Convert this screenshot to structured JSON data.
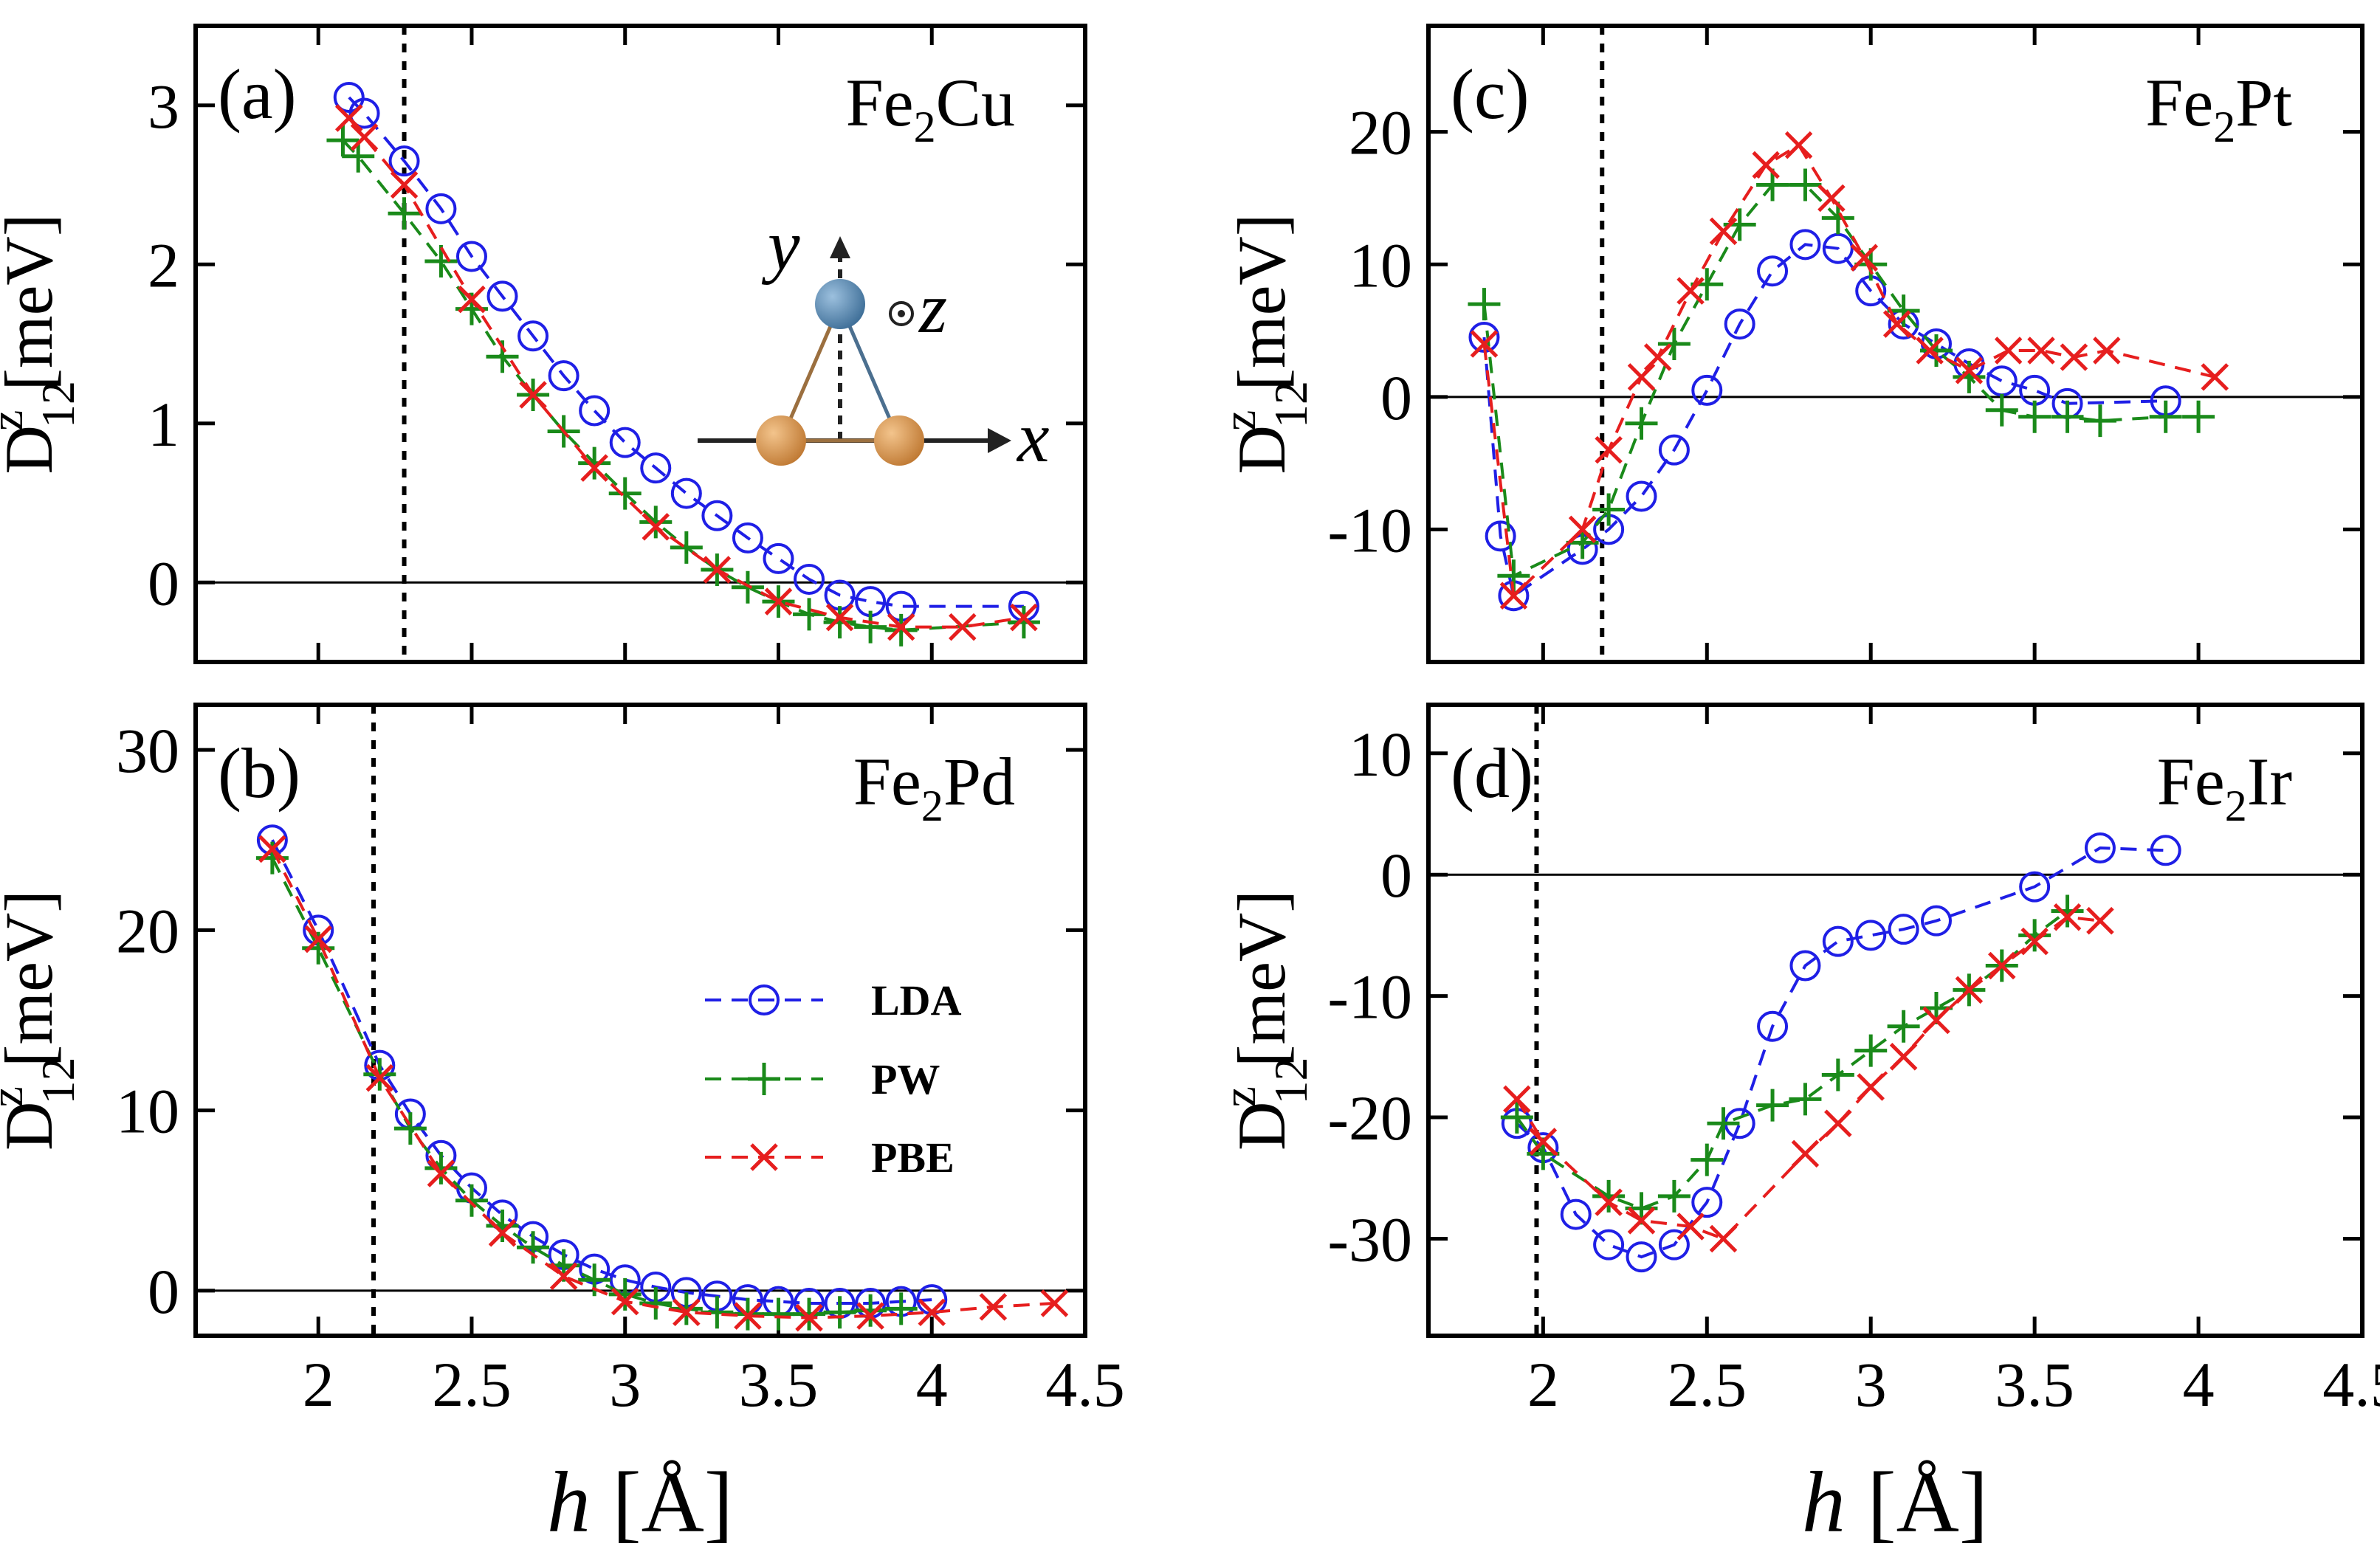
{
  "xlabel": {
    "italic": "h",
    "rest": " [Å]"
  },
  "colors": {
    "LDA": "#1f1fe6",
    "PW": "#1a8a1a",
    "PBE": "#e61e1e"
  },
  "legend": [
    {
      "name": "LDA",
      "marker": "circle"
    },
    {
      "name": "PW",
      "marker": "plus"
    },
    {
      "name": "PBE",
      "marker": "cross"
    }
  ],
  "inset": {
    "x": "x",
    "y": "y",
    "z": "z"
  },
  "chart_data": [
    {
      "type": "line",
      "panel": "(a)",
      "title": "Fe",
      "subscript": "2",
      "title_tail": "Cu",
      "ylabel": {
        "main": "D",
        "sup": "z",
        "sub": "12",
        "unit": "[meV]"
      },
      "xlim": [
        1.6,
        4.5
      ],
      "ylim": [
        -0.5,
        3.5
      ],
      "xticks": [
        "2",
        "2.5",
        "3",
        "3.5",
        "4",
        "4.5"
      ],
      "xtick_values": [
        2,
        2.5,
        3,
        3.5,
        4,
        4.5
      ],
      "ytick_values": [
        0,
        1,
        2,
        3
      ],
      "yticks": [
        "0",
        "1",
        "2",
        "3"
      ],
      "vline": 2.28,
      "show_xticklabels": false,
      "series": [
        {
          "name": "LDA",
          "x": [
            2.1,
            2.15,
            2.28,
            2.4,
            2.5,
            2.6,
            2.7,
            2.8,
            2.9,
            3.0,
            3.1,
            3.2,
            3.3,
            3.4,
            3.5,
            3.6,
            3.7,
            3.8,
            3.9,
            4.3
          ],
          "y": [
            3.05,
            2.95,
            2.65,
            2.35,
            2.05,
            1.8,
            1.55,
            1.3,
            1.08,
            0.88,
            0.72,
            0.56,
            0.42,
            0.28,
            0.15,
            0.02,
            -0.08,
            -0.12,
            -0.15,
            -0.15
          ]
        },
        {
          "name": "PW",
          "x": [
            2.08,
            2.13,
            2.28,
            2.4,
            2.5,
            2.6,
            2.7,
            2.8,
            2.9,
            3.0,
            3.1,
            3.2,
            3.3,
            3.4,
            3.5,
            3.6,
            3.7,
            3.8,
            3.9,
            4.3
          ],
          "y": [
            2.78,
            2.68,
            2.32,
            2.02,
            1.72,
            1.42,
            1.18,
            0.95,
            0.75,
            0.56,
            0.38,
            0.22,
            0.08,
            -0.03,
            -0.12,
            -0.2,
            -0.25,
            -0.28,
            -0.3,
            -0.25
          ]
        },
        {
          "name": "PBE",
          "x": [
            2.1,
            2.15,
            2.28,
            2.5,
            2.7,
            2.9,
            3.1,
            3.3,
            3.5,
            3.7,
            3.9,
            4.1,
            4.3
          ],
          "y": [
            2.92,
            2.8,
            2.5,
            1.78,
            1.18,
            0.72,
            0.35,
            0.08,
            -0.12,
            -0.22,
            -0.28,
            -0.28,
            -0.22
          ]
        }
      ]
    },
    {
      "type": "line",
      "panel": "(b)",
      "title": "Fe",
      "subscript": "2",
      "title_tail": "Pd",
      "ylabel": {
        "main": "D",
        "sup": "z",
        "sub": "12",
        "unit": "[meV]"
      },
      "xlim": [
        1.6,
        4.5
      ],
      "ylim": [
        -2.5,
        32.5
      ],
      "xticks": [
        "2",
        "2.5",
        "3",
        "3.5",
        "4",
        "4.5"
      ],
      "xtick_values": [
        2,
        2.5,
        3,
        3.5,
        4,
        4.5
      ],
      "ytick_values": [
        0,
        10,
        20,
        30
      ],
      "yticks": [
        "0",
        "10",
        "20",
        "30"
      ],
      "vline": 2.18,
      "show_xticklabels": true,
      "series": [
        {
          "name": "LDA",
          "x": [
            1.85,
            2.0,
            2.2,
            2.3,
            2.4,
            2.5,
            2.6,
            2.7,
            2.8,
            2.9,
            3.0,
            3.1,
            3.2,
            3.3,
            3.4,
            3.5,
            3.6,
            3.7,
            3.8,
            3.9,
            4.0
          ],
          "y": [
            25.0,
            20.0,
            12.5,
            9.8,
            7.5,
            5.7,
            4.2,
            3.0,
            2.0,
            1.2,
            0.6,
            0.2,
            -0.1,
            -0.3,
            -0.5,
            -0.6,
            -0.7,
            -0.7,
            -0.7,
            -0.6,
            -0.5
          ]
        },
        {
          "name": "PW",
          "x": [
            1.85,
            2.0,
            2.2,
            2.3,
            2.4,
            2.5,
            2.6,
            2.7,
            2.8,
            2.9,
            3.0,
            3.1,
            3.2,
            3.3,
            3.4,
            3.5,
            3.6,
            3.7,
            3.8,
            3.9
          ],
          "y": [
            24.0,
            19.0,
            12.0,
            9.0,
            6.8,
            5.0,
            3.6,
            2.4,
            1.4,
            0.6,
            -0.2,
            -0.7,
            -1.0,
            -1.2,
            -1.3,
            -1.3,
            -1.3,
            -1.2,
            -1.1,
            -1.0
          ]
        },
        {
          "name": "PBE",
          "x": [
            1.85,
            2.0,
            2.2,
            2.4,
            2.6,
            2.8,
            3.0,
            3.2,
            3.4,
            3.6,
            3.8,
            4.0,
            4.2,
            4.4
          ],
          "y": [
            24.5,
            19.5,
            11.8,
            6.5,
            3.2,
            0.8,
            -0.6,
            -1.2,
            -1.4,
            -1.5,
            -1.4,
            -1.2,
            -0.9,
            -0.7
          ]
        }
      ]
    },
    {
      "type": "line",
      "panel": "(c)",
      "title": "Fe",
      "subscript": "2",
      "title_tail": "Pt",
      "ylabel": {
        "main": "D",
        "sup": "z",
        "sub": "12",
        "unit": "[meV]"
      },
      "xlim": [
        1.65,
        4.5
      ],
      "ylim": [
        -20,
        28
      ],
      "xticks": [
        "2",
        "2.5",
        "3",
        "3.5",
        "4",
        "4.5"
      ],
      "xtick_values": [
        2,
        2.5,
        3,
        3.5,
        4,
        4.5
      ],
      "ytick_values": [
        -10,
        0,
        10,
        20
      ],
      "yticks": [
        "-10",
        "0",
        "10",
        "20"
      ],
      "vline": 2.18,
      "show_xticklabels": false,
      "series": [
        {
          "name": "LDA",
          "x": [
            1.82,
            1.87,
            1.91,
            2.12,
            2.2,
            2.3,
            2.4,
            2.5,
            2.6,
            2.7,
            2.8,
            2.9,
            3.0,
            3.1,
            3.2,
            3.3,
            3.4,
            3.5,
            3.6,
            3.9
          ],
          "y": [
            4.5,
            -10.5,
            -15.0,
            -11.5,
            -10.0,
            -7.5,
            -4.0,
            0.5,
            5.5,
            9.5,
            11.5,
            11.2,
            8.0,
            5.5,
            4.0,
            2.5,
            1.2,
            0.5,
            -0.5,
            -0.3
          ]
        },
        {
          "name": "PW",
          "x": [
            1.82,
            1.91,
            2.12,
            2.2,
            2.3,
            2.4,
            2.5,
            2.6,
            2.7,
            2.8,
            2.9,
            3.0,
            3.1,
            3.2,
            3.3,
            3.4,
            3.5,
            3.6,
            3.7,
            3.9,
            4.0
          ],
          "y": [
            7.0,
            -13.5,
            -11.0,
            -8.5,
            -2.0,
            4.0,
            8.5,
            13.0,
            16.0,
            16.0,
            13.5,
            10.0,
            6.5,
            3.5,
            1.5,
            -1.0,
            -1.5,
            -1.5,
            -1.8,
            -1.5,
            -1.5
          ]
        },
        {
          "name": "PBE",
          "x": [
            1.82,
            1.91,
            2.12,
            2.2,
            2.3,
            2.35,
            2.45,
            2.55,
            2.68,
            2.78,
            2.88,
            2.98,
            3.08,
            3.18,
            3.3,
            3.42,
            3.52,
            3.62,
            3.72,
            4.05
          ],
          "y": [
            4.0,
            -15.0,
            -10.0,
            -4.0,
            1.5,
            3.0,
            8.0,
            12.5,
            17.5,
            19.0,
            15.0,
            10.5,
            5.5,
            3.5,
            2.0,
            3.5,
            3.5,
            3.0,
            3.5,
            1.5
          ]
        }
      ]
    },
    {
      "type": "line",
      "panel": "(d)",
      "title": "Fe",
      "subscript": "2",
      "title_tail": "Ir",
      "ylabel": {
        "main": "D",
        "sup": "z",
        "sub": "12",
        "unit": "[meV]"
      },
      "xlim": [
        1.65,
        4.5
      ],
      "ylim": [
        -38,
        14
      ],
      "xticks": [
        "2",
        "2.5",
        "3",
        "3.5",
        "4",
        "4.5"
      ],
      "xtick_values": [
        2,
        2.5,
        3,
        3.5,
        4,
        4.5
      ],
      "ytick_values": [
        -30,
        -20,
        -10,
        0,
        10
      ],
      "yticks": [
        "-30",
        "-20",
        "-10",
        "0",
        "10"
      ],
      "vline": 1.98,
      "show_xticklabels": true,
      "series": [
        {
          "name": "LDA",
          "x": [
            1.92,
            2.0,
            2.1,
            2.2,
            2.3,
            2.4,
            2.5,
            2.6,
            2.7,
            2.8,
            2.9,
            3.0,
            3.1,
            3.2,
            3.5,
            3.7,
            3.9
          ],
          "y": [
            -20.5,
            -22.5,
            -28.0,
            -30.5,
            -31.5,
            -30.5,
            -27.0,
            -20.5,
            -12.5,
            -7.5,
            -5.5,
            -5.0,
            -4.5,
            -3.8,
            -1.0,
            2.2,
            2.0
          ]
        },
        {
          "name": "PW",
          "x": [
            1.92,
            2.0,
            2.2,
            2.3,
            2.4,
            2.5,
            2.55,
            2.7,
            2.8,
            2.9,
            3.0,
            3.1,
            3.2,
            3.3,
            3.4,
            3.5,
            3.6
          ],
          "y": [
            -20.0,
            -23.0,
            -26.5,
            -27.5,
            -26.5,
            -23.5,
            -20.5,
            -19.0,
            -18.5,
            -16.5,
            -14.5,
            -12.5,
            -11.0,
            -9.5,
            -7.5,
            -5.0,
            -3.0
          ]
        },
        {
          "name": "PBE",
          "x": [
            1.92,
            2.0,
            2.2,
            2.3,
            2.45,
            2.55,
            2.8,
            2.9,
            3.0,
            3.1,
            3.2,
            3.3,
            3.4,
            3.5,
            3.6,
            3.7
          ],
          "y": [
            -18.5,
            -22.0,
            -27.0,
            -28.5,
            -29.0,
            -30.0,
            -23.0,
            -20.5,
            -17.5,
            -15.0,
            -12.0,
            -9.5,
            -7.5,
            -5.5,
            -3.5,
            -3.8
          ]
        }
      ]
    }
  ]
}
